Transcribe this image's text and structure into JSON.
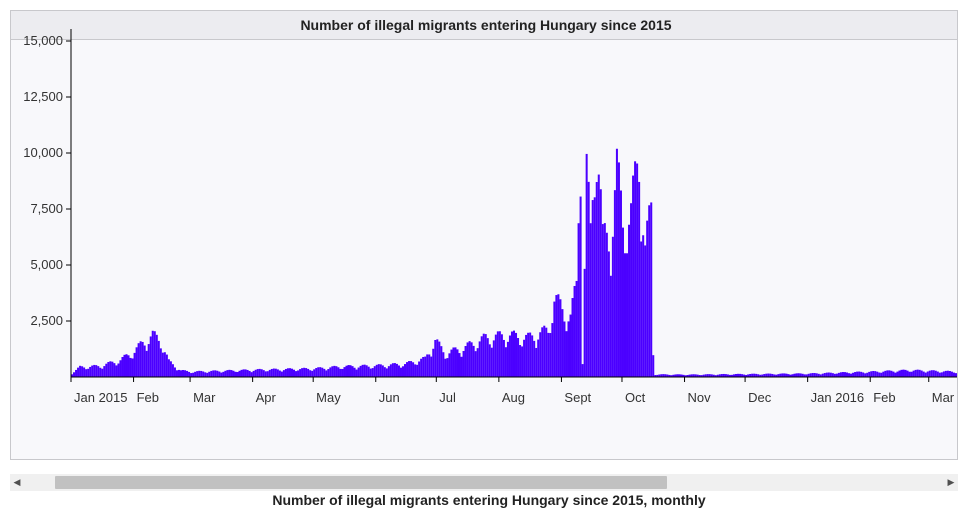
{
  "colors": {
    "bar": "#4b00ff",
    "panel_bg": "#f8f8fb",
    "header_bg": "#ececf0"
  },
  "caption": "Number of illegal migrants entering Hungary since 2015, monthly",
  "scrollbar": {
    "left_arrow": "◀",
    "right_arrow": "▶"
  },
  "chart_data": {
    "type": "bar",
    "title": "Number of illegal migrants entering Hungary since 2015",
    "xlabel": "",
    "ylabel": "",
    "ylim": [
      0,
      15000
    ],
    "yticks": [
      2500,
      5000,
      7500,
      10000,
      12500,
      15000
    ],
    "ytick_labels": [
      "2,500",
      "5,000",
      "7,500",
      "10,000",
      "12,500",
      "15,000"
    ],
    "x_start": "2015-01-01",
    "x_end": "2016-03-15",
    "xtick_dates": [
      "2015-01-01",
      "2015-02-01",
      "2015-03-01",
      "2015-04-01",
      "2015-05-01",
      "2015-06-01",
      "2015-07-01",
      "2015-08-01",
      "2015-09-01",
      "2015-10-01",
      "2015-11-01",
      "2015-12-01",
      "2016-01-01",
      "2016-02-01",
      "2016-03-01"
    ],
    "xtick_labels": [
      "Jan 2015",
      "Feb",
      "Mar",
      "Apr",
      "May",
      "Jun",
      "Jul",
      "Aug",
      "Sept",
      "Oct",
      "Nov",
      "Dec",
      "Jan 2016",
      "Feb",
      "Mar"
    ],
    "grid": false,
    "legend": "none",
    "anchors": [
      [
        "2015-01-01",
        150
      ],
      [
        "2015-01-05",
        380
      ],
      [
        "2015-01-15",
        420
      ],
      [
        "2015-01-25",
        650
      ],
      [
        "2015-02-01",
        1000
      ],
      [
        "2015-02-05",
        1300
      ],
      [
        "2015-02-10",
        1600
      ],
      [
        "2015-02-14",
        1400
      ],
      [
        "2015-02-18",
        600
      ],
      [
        "2015-02-24",
        250
      ],
      [
        "2015-03-01",
        200
      ],
      [
        "2015-04-01",
        270
      ],
      [
        "2015-05-01",
        320
      ],
      [
        "2015-05-15",
        400
      ],
      [
        "2015-06-01",
        430
      ],
      [
        "2015-06-15",
        500
      ],
      [
        "2015-06-25",
        700
      ],
      [
        "2015-06-30",
        1400
      ],
      [
        "2015-07-05",
        900
      ],
      [
        "2015-07-15",
        1150
      ],
      [
        "2015-07-25",
        1500
      ],
      [
        "2015-08-05",
        1600
      ],
      [
        "2015-08-15",
        1500
      ],
      [
        "2015-08-25",
        1800
      ],
      [
        "2015-08-28",
        3000
      ],
      [
        "2015-09-01",
        2600
      ],
      [
        "2015-09-05",
        2300
      ],
      [
        "2015-09-08",
        3500
      ],
      [
        "2015-09-10",
        9400
      ],
      [
        "2015-09-11",
        600
      ],
      [
        "2015-09-13",
        7800
      ],
      [
        "2015-09-15",
        5400
      ],
      [
        "2015-09-18",
        10000
      ],
      [
        "2015-09-21",
        5200
      ],
      [
        "2015-09-25",
        5500
      ],
      [
        "2015-09-28",
        7900
      ],
      [
        "2015-10-01",
        6000
      ],
      [
        "2015-10-05",
        6200
      ],
      [
        "2015-10-09",
        8700
      ],
      [
        "2015-10-12",
        4900
      ],
      [
        "2015-10-15",
        6300
      ],
      [
        "2015-10-16",
        900
      ],
      [
        "2015-10-17",
        100
      ],
      [
        "2015-11-01",
        90
      ],
      [
        "2015-12-01",
        110
      ],
      [
        "2016-01-01",
        130
      ],
      [
        "2016-02-01",
        200
      ],
      [
        "2016-02-20",
        260
      ],
      [
        "2016-03-15",
        200
      ]
    ]
  }
}
